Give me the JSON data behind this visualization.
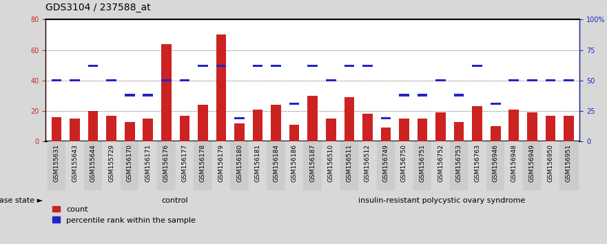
{
  "title": "GDS3104 / 237588_at",
  "samples": [
    "GSM155631",
    "GSM155643",
    "GSM155644",
    "GSM155729",
    "GSM156170",
    "GSM156171",
    "GSM156176",
    "GSM156177",
    "GSM156178",
    "GSM156179",
    "GSM156180",
    "GSM156181",
    "GSM156184",
    "GSM156186",
    "GSM156187",
    "GSM156510",
    "GSM156511",
    "GSM156512",
    "GSM156749",
    "GSM156750",
    "GSM156751",
    "GSM156752",
    "GSM156753",
    "GSM156763",
    "GSM156946",
    "GSM156948",
    "GSM156949",
    "GSM156950",
    "GSM156951"
  ],
  "counts": [
    16,
    15,
    20,
    17,
    13,
    15,
    64,
    17,
    24,
    70,
    12,
    21,
    24,
    11,
    30,
    15,
    29,
    18,
    9,
    15,
    15,
    19,
    13,
    23,
    10,
    21,
    19,
    17,
    17
  ],
  "percentile_ranks": [
    50,
    50,
    62,
    50,
    38,
    38,
    50,
    50,
    62,
    62,
    19,
    62,
    62,
    31,
    62,
    50,
    62,
    62,
    19,
    38,
    38,
    50,
    38,
    62,
    31,
    50,
    50,
    50,
    50
  ],
  "n_control": 14,
  "control_label": "control",
  "disease_label": "insulin-resistant polycystic ovary syndrome",
  "disease_state_label": "disease state",
  "bar_color": "#cc2222",
  "percentile_color": "#2222cc",
  "bg_color": "#d8d8d8",
  "plot_bg": "#ffffff",
  "label_band_bg": "#c8c8c8",
  "left_axis_color": "#cc2222",
  "right_axis_color": "#2222cc",
  "ylim_left": [
    0,
    80
  ],
  "ylim_right": [
    0,
    100
  ],
  "left_ticks": [
    0,
    20,
    40,
    60,
    80
  ],
  "right_ticks": [
    0,
    25,
    50,
    75,
    100
  ],
  "right_tick_labels": [
    "0",
    "25",
    "50",
    "75",
    "100%"
  ],
  "control_color": "#aaddaa",
  "disease_color": "#44cc44",
  "legend_count": "count",
  "legend_pct": "percentile rank within the sample",
  "title_fontsize": 10,
  "tick_fontsize": 7,
  "label_fontsize": 8,
  "bar_width": 0.55
}
